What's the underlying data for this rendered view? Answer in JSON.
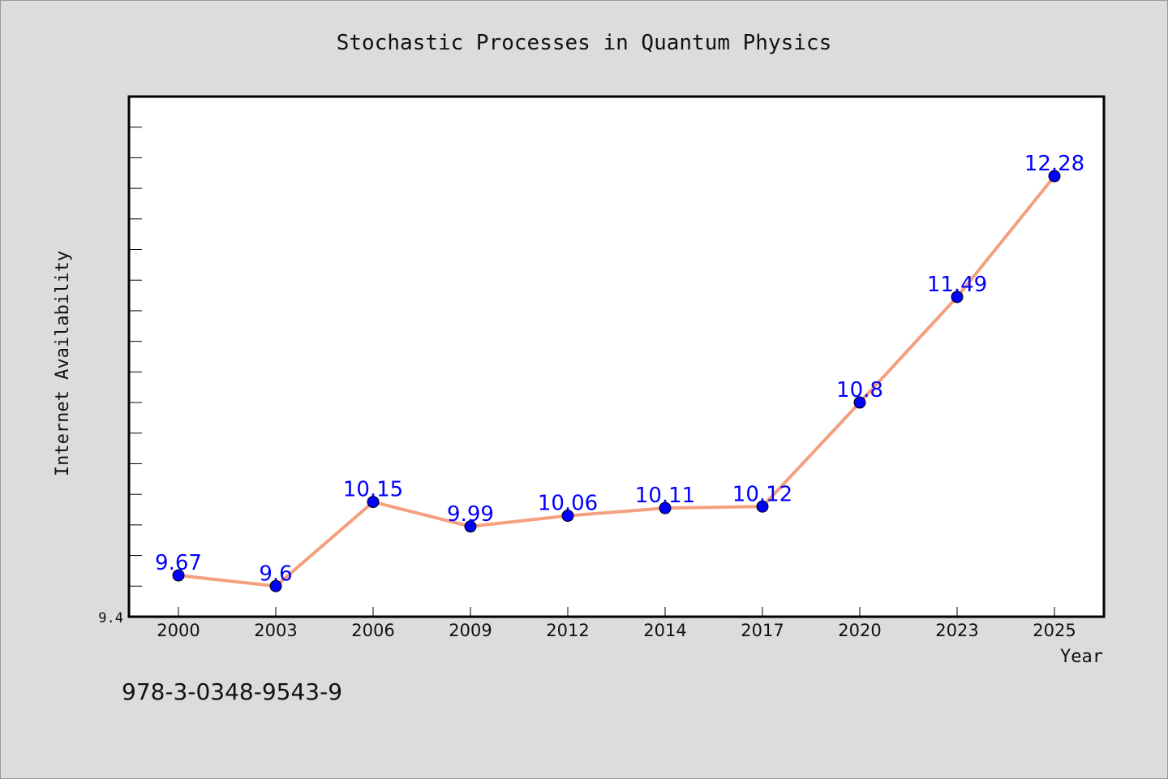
{
  "chart_data": {
    "type": "line",
    "title": "Stochastic Processes in Quantum Physics",
    "xlabel": "Year",
    "ylabel": "Internet Availability",
    "categories": [
      "2000",
      "2003",
      "2006",
      "2009",
      "2012",
      "2014",
      "2017",
      "2020",
      "2023",
      "2025"
    ],
    "series": [
      {
        "values": [
          9.67,
          9.6,
          10.15,
          9.99,
          10.06,
          10.11,
          10.12,
          10.8,
          11.49,
          12.28
        ]
      }
    ],
    "data_labels": [
      "9.67",
      "9.6",
      "10.15",
      "9.99",
      "10.06",
      "10.11",
      "10.12",
      "10.8",
      "11.49",
      "12.28"
    ],
    "ylim": [
      9.4,
      12.8
    ],
    "y_tick_label": "9.4",
    "grid": false,
    "legend": "none",
    "colors": {
      "line": "#f4a07e",
      "marker": "#0000ff",
      "data_label": "#0000ff",
      "background": "#dcdcdc",
      "plot_background": "#ffffff"
    }
  },
  "footer": {
    "isbn": "978-3-0348-9543-9"
  }
}
